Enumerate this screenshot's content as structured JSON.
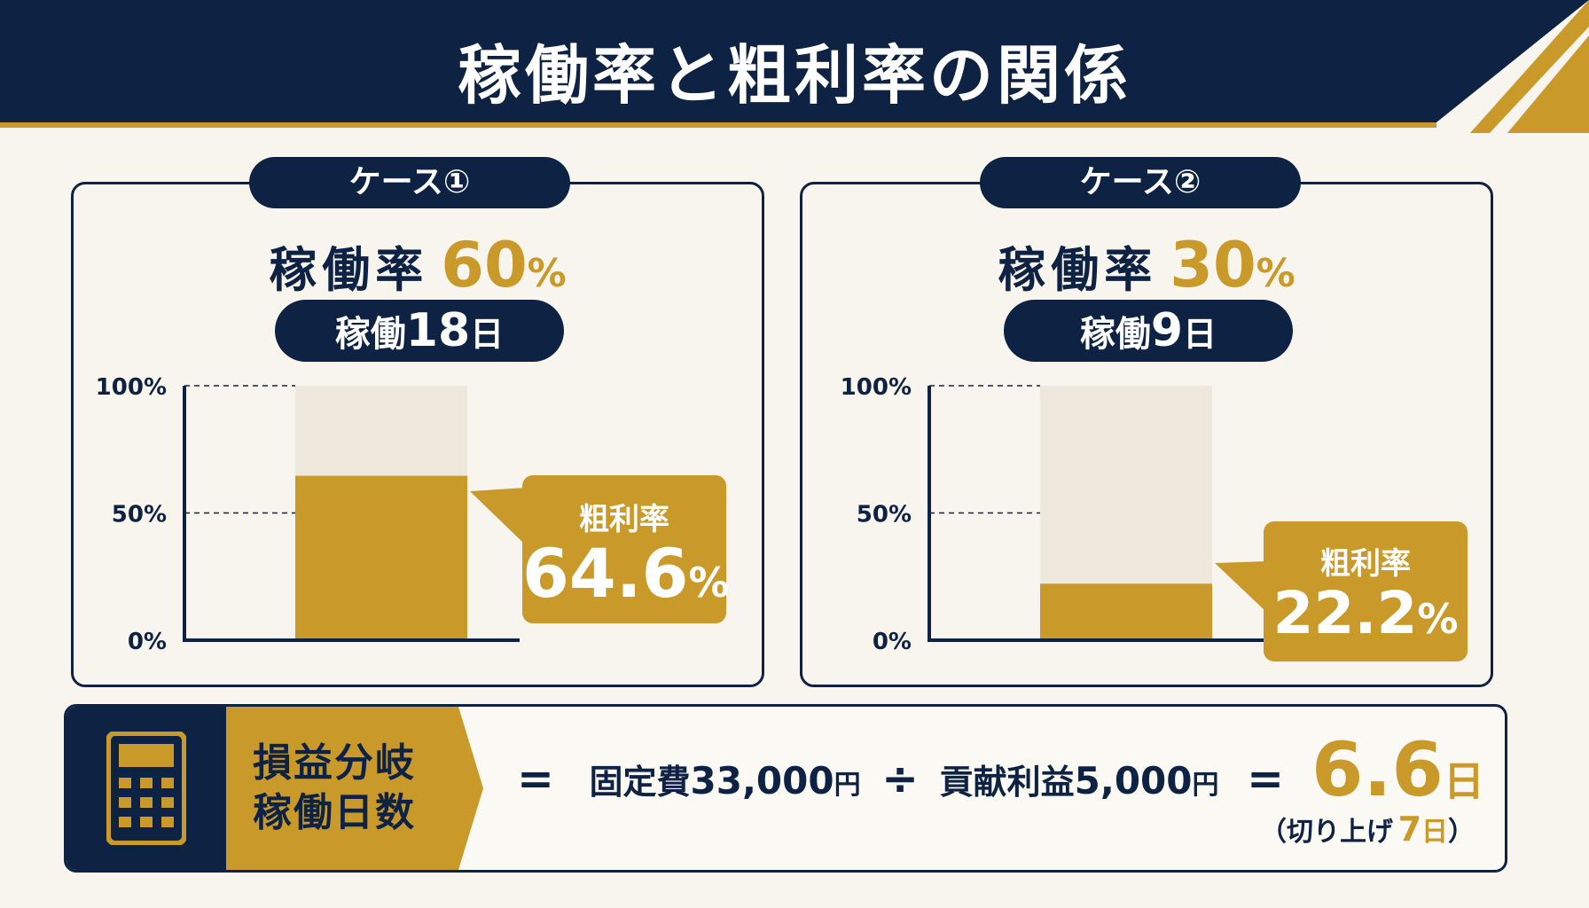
{
  "title": "稼働率と粗利率の関係",
  "colors": {
    "navy": "#0e2244",
    "gold": "#c9992a",
    "bar_bg": "#eee8dc",
    "page_bg": "#f8f5ee"
  },
  "cases": [
    {
      "tag": "ケース①",
      "rate_label": "稼働率",
      "rate_value": "60",
      "rate_unit": "%",
      "days_label": "稼働",
      "days_value": "18",
      "days_unit": "日",
      "margin_label": "粗利率",
      "margin_value": "64.6",
      "margin_unit": "%"
    },
    {
      "tag": "ケース②",
      "rate_label": "稼働率",
      "rate_value": "30",
      "rate_unit": "%",
      "days_label": "稼働",
      "days_value": "9",
      "days_unit": "日",
      "margin_label": "粗利率",
      "margin_value": "22.2",
      "margin_unit": "%"
    }
  ],
  "chart_data": [
    {
      "type": "bar",
      "title": "",
      "categories": [
        ""
      ],
      "values": [
        64.6
      ],
      "ylim": [
        0,
        100
      ],
      "yticks": [
        "0%",
        "50%",
        "100%"
      ],
      "ytick_values": [
        0,
        50,
        100
      ],
      "value_label": "64.6%"
    },
    {
      "type": "bar",
      "title": "",
      "categories": [
        ""
      ],
      "values": [
        22.2
      ],
      "ylim": [
        0,
        100
      ],
      "yticks": [
        "0%",
        "50%",
        "100%"
      ],
      "ytick_values": [
        0,
        50,
        100
      ],
      "value_label": "22.2%"
    }
  ],
  "breakeven": {
    "label_line1": "損益分岐",
    "label_line2": "稼働日数",
    "eq1": "=",
    "fixed_label": "固定費",
    "fixed_value": "33,000",
    "fixed_unit": "円",
    "div": "÷",
    "contrib_label": "貢献利益",
    "contrib_value": "5,000",
    "contrib_unit": "円",
    "eq2": "=",
    "result_value": "6.6",
    "result_unit": "日",
    "note_prefix": "（切り上げ",
    "note_value": "7",
    "note_unit": "日",
    "note_suffix": "）",
    "icon": "calculator-icon"
  }
}
